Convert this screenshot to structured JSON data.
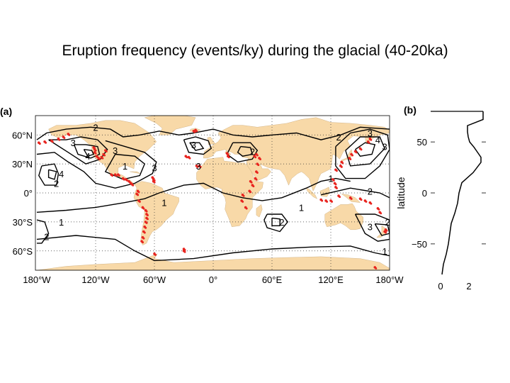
{
  "title": "Eruption frequency (events/ky) during the glacial (40-20ka)",
  "colors": {
    "land": "#f8d9a8",
    "ocean": "#ffffff",
    "contour": "#000000",
    "volcano": "#e8241f",
    "grid": "#333333"
  },
  "chart_data": [
    {
      "panel_label": "(a)",
      "type": "heatmap",
      "description_type": "contour map with volcano markers",
      "x_ticks": [
        "180°W",
        "120°W",
        "60°W",
        "0°",
        "60°E",
        "120°E",
        "180°W"
      ],
      "x_tick_values": [
        -180,
        -120,
        -60,
        0,
        60,
        120,
        180
      ],
      "y_ticks": [
        "60°N",
        "30°N",
        "0°",
        "30°S",
        "60°S"
      ],
      "y_tick_values": [
        60,
        30,
        0,
        -30,
        -60
      ],
      "xlim": [
        -180,
        180
      ],
      "ylim": [
        -80,
        80
      ],
      "grid": "dotted",
      "contour_labels": [
        {
          "text": "2",
          "lon": -120,
          "lat": 68
        },
        {
          "text": "3",
          "lon": -143,
          "lat": 52
        },
        {
          "text": "4",
          "lon": -128,
          "lat": 38
        },
        {
          "text": "3",
          "lon": -100,
          "lat": 44
        },
        {
          "text": "4",
          "lon": -155,
          "lat": 20
        },
        {
          "text": "2",
          "lon": -160,
          "lat": 10
        },
        {
          "text": "1",
          "lon": -90,
          "lat": 28
        },
        {
          "text": "3",
          "lon": -60,
          "lat": 26
        },
        {
          "text": "1",
          "lon": -50,
          "lat": -10
        },
        {
          "text": "3",
          "lon": -20,
          "lat": 50
        },
        {
          "text": "3",
          "lon": -15,
          "lat": 28
        },
        {
          "text": "1",
          "lon": -155,
          "lat": -30
        },
        {
          "text": "2",
          "lon": -170,
          "lat": -45
        },
        {
          "text": "2",
          "lon": 40,
          "lat": 43
        },
        {
          "text": "2",
          "lon": 70,
          "lat": -30
        },
        {
          "text": "1",
          "lon": 90,
          "lat": -15
        },
        {
          "text": "2",
          "lon": 128,
          "lat": 58
        },
        {
          "text": "3",
          "lon": 160,
          "lat": 62
        },
        {
          "text": "4",
          "lon": 168,
          "lat": 55
        },
        {
          "text": "3",
          "lon": 175,
          "lat": 48
        },
        {
          "text": "1",
          "lon": 120,
          "lat": 15
        },
        {
          "text": "2",
          "lon": 160,
          "lat": 2
        },
        {
          "text": "2",
          "lon": 178,
          "lat": -30
        },
        {
          "text": "3",
          "lon": 160,
          "lat": -35
        },
        {
          "text": "1",
          "lon": 175,
          "lat": -60
        }
      ],
      "volcano_regions": [
        {
          "name": "aleutians",
          "points": [
            [
              -178,
              52
            ],
            [
              -172,
              53
            ],
            [
              -165,
              54
            ],
            [
              -158,
              56
            ],
            [
              -153,
              58
            ],
            [
              -148,
              61
            ]
          ]
        },
        {
          "name": "cascades-west-us",
          "points": [
            [
              -122,
              47
            ],
            [
              -121,
              45
            ],
            [
              -121,
              42
            ],
            [
              -119,
              38
            ],
            [
              -117,
              36
            ],
            [
              -114,
              37
            ],
            [
              -112,
              40
            ],
            [
              -110,
              44
            ]
          ]
        },
        {
          "name": "mexico-central-america",
          "points": [
            [
              -104,
              19
            ],
            [
              -100,
              19
            ],
            [
              -97,
              19
            ],
            [
              -92,
              15
            ],
            [
              -89,
              14
            ],
            [
              -86,
              12
            ],
            [
              -84,
              10
            ],
            [
              -83,
              9
            ]
          ]
        },
        {
          "name": "andes",
          "points": [
            [
              -77,
              2
            ],
            [
              -78,
              -1
            ],
            [
              -76,
              -8
            ],
            [
              -72,
              -15
            ],
            [
              -69,
              -18
            ],
            [
              -68,
              -22
            ],
            [
              -68,
              -26
            ],
            [
              -69,
              -30
            ],
            [
              -70,
              -35
            ],
            [
              -71,
              -40
            ],
            [
              -72,
              -46
            ],
            [
              -73,
              -50
            ]
          ]
        },
        {
          "name": "caribbean",
          "points": [
            [
              -62,
              16
            ],
            [
              -61,
              14
            ],
            [
              -61,
              12
            ]
          ]
        },
        {
          "name": "iceland-atlantic",
          "points": [
            [
              -20,
              64
            ],
            [
              -18,
              65
            ],
            [
              -28,
              38
            ],
            [
              -25,
              37
            ],
            [
              -17,
              28
            ],
            [
              -14,
              28
            ]
          ]
        },
        {
          "name": "mediterranean-africa",
          "points": [
            [
              15,
              38
            ],
            [
              14,
              41
            ],
            [
              38,
              12
            ],
            [
              40,
              8
            ],
            [
              37,
              2
            ],
            [
              30,
              -2
            ],
            [
              29,
              -8
            ],
            [
              33,
              -15
            ]
          ]
        },
        {
          "name": "arabia-anatolia",
          "points": [
            [
              42,
              38
            ],
            [
              44,
              40
            ],
            [
              47,
              36
            ],
            [
              45,
              30
            ],
            [
              44,
              22
            ],
            [
              43,
              15
            ]
          ]
        },
        {
          "name": "kamchatka-japan",
          "points": [
            [
              160,
              56
            ],
            [
              158,
              53
            ],
            [
              150,
              46
            ],
            [
              145,
              43
            ],
            [
              141,
              40
            ],
            [
              139,
              36
            ],
            [
              131,
              32
            ],
            [
              130,
              28
            ],
            [
              125,
              24
            ]
          ]
        },
        {
          "name": "philippines-indonesia",
          "points": [
            [
              122,
              14
            ],
            [
              124,
              10
            ],
            [
              125,
              6
            ],
            [
              110,
              -7
            ],
            [
              115,
              -8
            ],
            [
              120,
              -8
            ],
            [
              128,
              -3
            ],
            [
              140,
              -5
            ],
            [
              150,
              -6
            ]
          ]
        },
        {
          "name": "melanesia-nz",
          "points": [
            [
              155,
              -8
            ],
            [
              160,
              -10
            ],
            [
              168,
              -16
            ],
            [
              170,
              -20
            ],
            [
              176,
              -38
            ],
            [
              175,
              -40
            ]
          ]
        },
        {
          "name": "antarctica",
          "points": [
            [
              -60,
              -63
            ],
            [
              -30,
              -60
            ],
            [
              165,
              -77
            ],
            [
              -30,
              -58
            ]
          ]
        }
      ]
    },
    {
      "panel_label": "(b)",
      "type": "line",
      "ylabel": "latitude",
      "x_ticks": [
        "0",
        "2"
      ],
      "x_tick_values": [
        0,
        2
      ],
      "y_ticks": [
        "50",
        "0",
        "−50"
      ],
      "y_tick_values": [
        50,
        0,
        -50
      ],
      "xlim": [
        0,
        3
      ],
      "ylim": [
        -80,
        80
      ],
      "series": [
        {
          "lat": [
            80,
            72,
            66,
            60,
            55,
            50,
            45,
            40,
            35,
            30,
            20,
            10,
            0,
            -10,
            -20,
            -30,
            -40,
            -50,
            -60,
            -70,
            -80
          ],
          "value": [
            3.0,
            3.0,
            1.9,
            1.9,
            1.95,
            2.05,
            2.35,
            2.6,
            2.85,
            2.85,
            2.3,
            1.5,
            1.3,
            1.2,
            1.0,
            0.75,
            0.65,
            0.55,
            0.4,
            0.2,
            0.1
          ]
        }
      ]
    }
  ]
}
